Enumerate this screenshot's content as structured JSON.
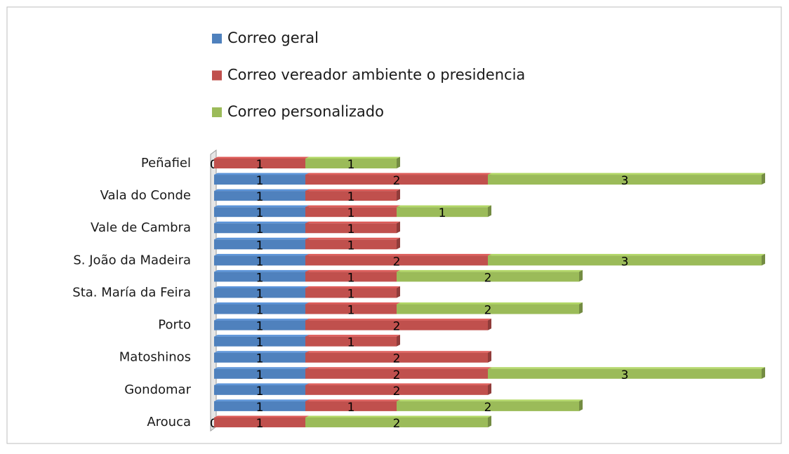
{
  "chart_data": {
    "type": "bar",
    "orientation": "horizontal",
    "stacked": true,
    "categories": [
      "Peñafiel",
      null,
      "Vala do Conde",
      null,
      "Vale de Cambra",
      null,
      "S. João da Madeira",
      null,
      "Sta. María da Feira",
      null,
      "Porto",
      null,
      "Matoshinos",
      null,
      "Gondomar",
      null,
      "Arouca"
    ],
    "series": [
      {
        "name": "Correo geral",
        "color": "#4f81bd",
        "values": [
          0,
          1,
          1,
          1,
          1,
          1,
          1,
          1,
          1,
          1,
          1,
          1,
          1,
          1,
          1,
          1,
          0
        ]
      },
      {
        "name": "Correo vereador ambiente o presidencia",
        "color": "#c0504d",
        "values": [
          1,
          2,
          1,
          1,
          1,
          1,
          2,
          1,
          1,
          1,
          2,
          1,
          2,
          2,
          2,
          1,
          1
        ]
      },
      {
        "name": "Correo personalizado",
        "color": "#9bbb59",
        "values": [
          1,
          3,
          null,
          1,
          null,
          null,
          3,
          2,
          null,
          2,
          null,
          null,
          null,
          3,
          null,
          2,
          2
        ]
      }
    ],
    "legend": "top"
  }
}
